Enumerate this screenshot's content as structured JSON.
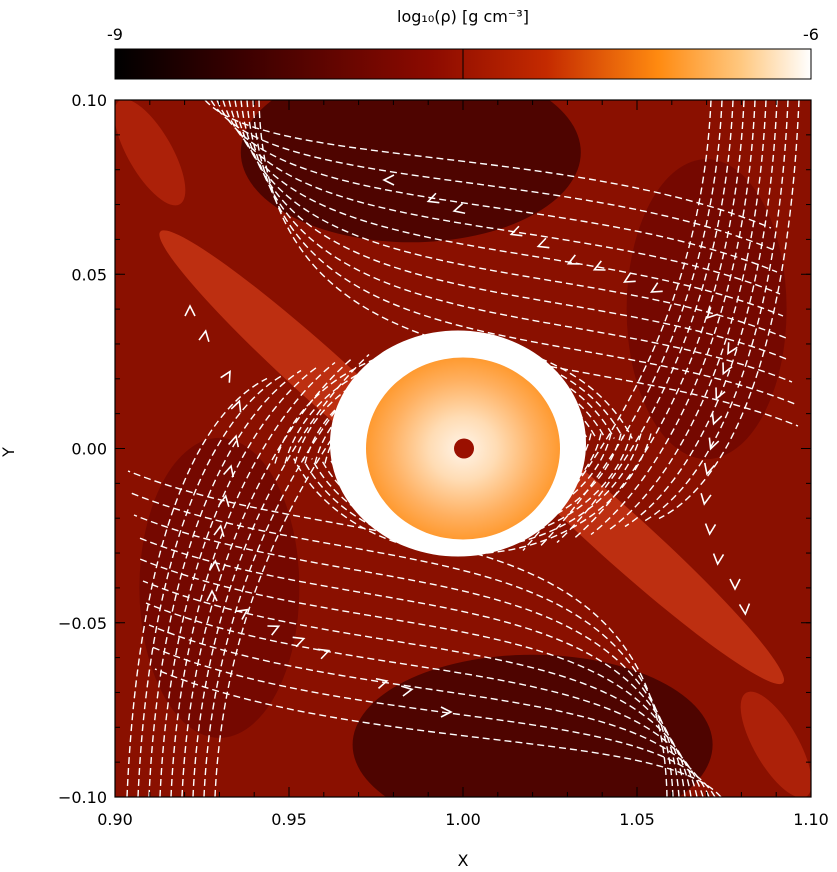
{
  "chart_data": {
    "type": "heatmap",
    "title": "",
    "colorbar": {
      "label": "log₁₀(ρ) [g cm⁻³]",
      "ticks": [
        "-9",
        "-6"
      ],
      "range": [
        -9,
        -6
      ],
      "colors": [
        "#000000",
        "#4a0000",
        "#8b0a00",
        "#b51a00",
        "#e04a00",
        "#ff8a10",
        "#ffc880",
        "#ffffff"
      ]
    },
    "xlabel": "X",
    "ylabel": "Y",
    "xlim": [
      0.9,
      1.1
    ],
    "ylim": [
      -0.1,
      0.1
    ],
    "xticks": [
      0.9,
      0.95,
      1.0,
      1.05,
      1.1
    ],
    "xtick_labels": [
      "0.90",
      "0.95",
      "1.00",
      "1.05",
      "1.10"
    ],
    "yticks": [
      -0.1,
      -0.05,
      0.0,
      0.05,
      0.1
    ],
    "ytick_labels": [
      "−0.10",
      "−0.05",
      "0.00",
      "0.05",
      "0.10"
    ],
    "features": {
      "planet_center": [
        1.0,
        0.0
      ],
      "circumplanetary_disk_radius": 0.028,
      "core_radius": 0.003,
      "streamlines": "white dashed",
      "arrows": "white chevrons"
    }
  }
}
